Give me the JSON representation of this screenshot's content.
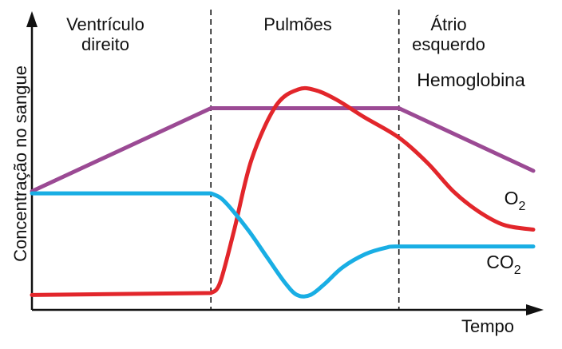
{
  "chart_data": {
    "type": "line",
    "title": "",
    "xlabel": "Tempo",
    "ylabel": "Concentração no sangue",
    "xlim": [
      0,
      100
    ],
    "ylim": [
      0,
      100
    ],
    "grid": false,
    "legend": "none",
    "regions": [
      {
        "lines": [
          "Ventrículo",
          "direito"
        ],
        "x_start": 0,
        "x_end": 35.7
      },
      {
        "lines": [
          "Pulmões"
        ],
        "x_start": 35.7,
        "x_end": 73.2
      },
      {
        "lines": [
          "Átrio",
          "esquerdo"
        ],
        "x_start": 73.2,
        "x_end": 100
      }
    ],
    "region_boundaries_x": [
      35.7,
      73.2
    ],
    "series": [
      {
        "name": "Hemoglobina",
        "label_parts": [
          "Hemoglobina"
        ],
        "color": "#9b4a94",
        "x": [
          0,
          35.7,
          73.2,
          100
        ],
        "y": [
          46.4,
          78.9,
          78.9,
          54.4
        ]
      },
      {
        "name": "O2",
        "label_parts": [
          "O",
          "2"
        ],
        "color": "#e2262b",
        "x": [
          0,
          35.7,
          37.5,
          40.3,
          43.8,
          48.7,
          53.2,
          56.8,
          60.8,
          66.2,
          73.2,
          78.9,
          84.1,
          89.1,
          94.2,
          100
        ],
        "y": [
          5.8,
          6.6,
          10.5,
          30.9,
          58.8,
          79.9,
          86.3,
          85.8,
          82.2,
          75.5,
          67.4,
          57.5,
          46.3,
          38.5,
          33.2,
          31.4
        ]
      },
      {
        "name": "CO2",
        "label_parts": [
          "CO",
          "2"
        ],
        "color": "#19aee4",
        "x": [
          0,
          35.7,
          37.7,
          39.9,
          43.4,
          46.9,
          50.4,
          52.9,
          55.5,
          58.4,
          62.0,
          66.5,
          70.6,
          73.2,
          85.7,
          100
        ],
        "y": [
          45.6,
          45.6,
          43.7,
          39.2,
          30.5,
          20.6,
          10.8,
          5.8,
          5.8,
          10.2,
          16.7,
          21.8,
          24.3,
          24.8,
          24.8,
          24.8
        ]
      }
    ]
  }
}
